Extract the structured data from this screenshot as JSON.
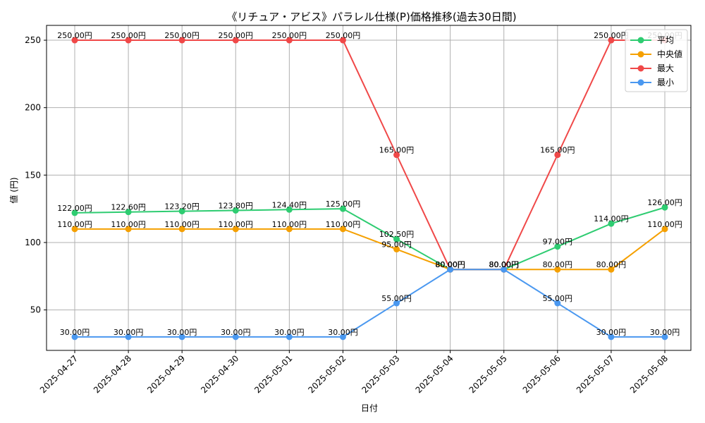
{
  "chart_data": {
    "type": "line",
    "title": "《リチュア・アビス》パラレル仕様(P)価格推移(過去30日間)",
    "xlabel": "日付",
    "ylabel": "値 (円)",
    "ylim": [
      20,
      261
    ],
    "yticks": [
      50,
      100,
      150,
      200,
      250
    ],
    "grid": true,
    "legend_position": "top-right",
    "value_suffix": "円",
    "categories": [
      "2025-04-27",
      "2025-04-28",
      "2025-04-29",
      "2025-04-30",
      "2025-05-01",
      "2025-05-02",
      "2025-05-03",
      "2025-05-04",
      "2025-05-05",
      "2025-05-06",
      "2025-05-07",
      "2025-05-08"
    ],
    "series": [
      {
        "name": "平均",
        "color": "#2ecc71",
        "values": [
          122.0,
          122.6,
          123.2,
          123.8,
          124.4,
          125.0,
          102.5,
          80.0,
          80.0,
          97.0,
          114.0,
          126.0
        ]
      },
      {
        "name": "中央値",
        "color": "#f5a000",
        "values": [
          110.0,
          110.0,
          110.0,
          110.0,
          110.0,
          110.0,
          95.0,
          80.0,
          80.0,
          80.0,
          80.0,
          110.0
        ]
      },
      {
        "name": "最大",
        "color": "#f04848",
        "values": [
          250.0,
          250.0,
          250.0,
          250.0,
          250.0,
          250.0,
          165.0,
          80.0,
          80.0,
          165.0,
          250.0,
          250.0
        ]
      },
      {
        "name": "最小",
        "color": "#4a98f0",
        "values": [
          30.0,
          30.0,
          30.0,
          30.0,
          30.0,
          30.0,
          55.0,
          80.0,
          80.0,
          55.0,
          30.0,
          30.0
        ]
      }
    ]
  }
}
